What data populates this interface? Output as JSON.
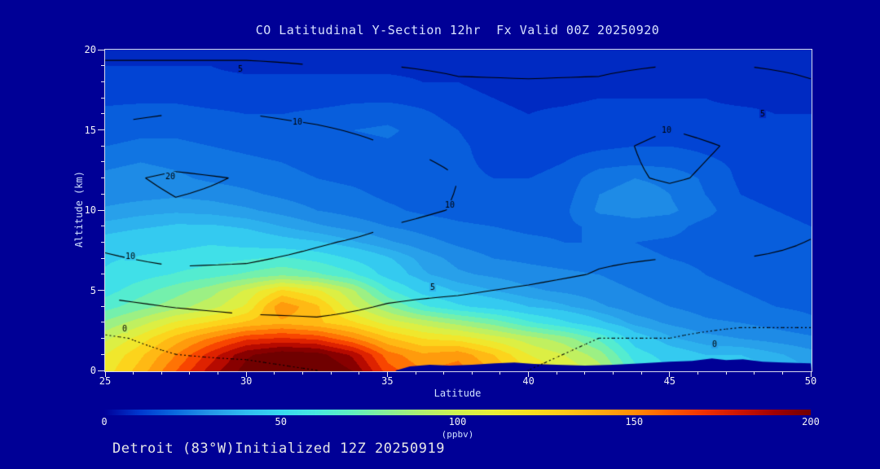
{
  "title": "CO Latitudinal Y-Section 12hr  Fx Valid 00Z 20250920",
  "footer": "Detroit (83°W)Initialized 12Z 20250919",
  "colors": {
    "background": "#000096",
    "frame": "#d9d9ec",
    "contour_line": "#000000",
    "tick": "#e6e6f2",
    "title_text": "#d8e2ff",
    "axis_text": "#f2f2f7"
  },
  "axes": {
    "x": {
      "label": "Latitude",
      "min": 25,
      "max": 50,
      "major": [
        25,
        30,
        35,
        40,
        45,
        50
      ],
      "minor_step": 1
    },
    "y": {
      "label": "Altitude (km)",
      "min": 0,
      "max": 20,
      "major": [
        0,
        5,
        10,
        15,
        20
      ],
      "minor_step": 1
    }
  },
  "colorbar": {
    "min": 0,
    "max": 200,
    "ticks": [
      0,
      50,
      100,
      150,
      200
    ],
    "label": "(ppbv)"
  },
  "chart_data": {
    "type": "heatmap",
    "title": "CO Latitudinal Y-Section 12hr  Fx Valid 00Z 20250920",
    "xlabel": "Latitude",
    "ylabel": "Altitude (km)",
    "units": "ppbv",
    "x_min": 25,
    "x_step": 1.25,
    "y_min": 0,
    "y_step": 1,
    "x": [
      25,
      26.25,
      27.5,
      28.75,
      30,
      31.25,
      32.5,
      33.75,
      35,
      36.25,
      37.5,
      38.75,
      40,
      41.25,
      42.5,
      43.75,
      45,
      46.25,
      47.5,
      48.75,
      50
    ],
    "y": [
      0,
      1,
      2,
      3,
      4,
      5,
      6,
      7,
      8,
      9,
      10,
      11,
      12,
      13,
      14,
      15,
      16,
      17,
      18,
      19,
      20
    ],
    "values": [
      [
        115,
        135,
        160,
        185,
        205,
        215,
        215,
        200,
        165,
        150,
        155,
        140,
        120,
        110,
        95,
        65,
        50,
        45,
        45,
        40,
        35
      ],
      [
        110,
        128,
        150,
        175,
        198,
        208,
        205,
        188,
        155,
        142,
        147,
        130,
        110,
        100,
        85,
        55,
        45,
        40,
        40,
        36,
        32
      ],
      [
        98,
        115,
        135,
        152,
        168,
        172,
        168,
        152,
        132,
        120,
        116,
        106,
        95,
        85,
        68,
        45,
        36,
        32,
        30,
        28,
        26
      ],
      [
        82,
        96,
        112,
        122,
        132,
        138,
        132,
        122,
        106,
        96,
        86,
        76,
        62,
        52,
        42,
        33,
        29,
        26,
        25,
        23,
        21
      ],
      [
        66,
        76,
        86,
        96,
        112,
        148,
        132,
        102,
        82,
        62,
        52,
        46,
        40,
        36,
        31,
        27,
        25,
        23,
        21,
        20,
        19
      ],
      [
        56,
        66,
        76,
        86,
        102,
        122,
        112,
        92,
        62,
        46,
        39,
        35,
        31,
        29,
        27,
        25,
        23,
        21,
        20,
        19,
        18
      ],
      [
        51,
        56,
        61,
        66,
        72,
        78,
        72,
        62,
        46,
        36,
        31,
        29,
        27,
        26,
        25,
        23,
        22,
        20,
        19,
        18,
        17
      ],
      [
        49,
        51,
        53,
        56,
        59,
        62,
        57,
        49,
        41,
        33,
        28,
        25,
        24,
        23,
        22,
        21,
        20,
        19,
        18,
        17,
        16
      ],
      [
        43,
        46,
        47,
        49,
        46,
        43,
        41,
        36,
        31,
        27,
        24,
        22,
        21,
        20,
        20,
        20,
        19,
        18,
        17,
        16,
        15
      ],
      [
        37,
        39,
        41,
        41,
        39,
        35,
        31,
        28,
        25,
        23,
        21,
        20,
        19,
        19,
        21,
        23,
        22,
        18,
        17,
        16,
        15
      ],
      [
        31,
        33,
        34,
        33,
        31,
        28,
        25,
        23,
        21,
        19,
        18,
        17,
        17,
        19,
        26,
        27,
        26,
        22,
        16,
        15,
        14
      ],
      [
        27,
        28,
        29,
        28,
        26,
        24,
        22,
        21,
        19,
        18,
        17,
        16,
        16,
        18,
        25,
        27,
        25,
        20,
        15,
        14,
        13
      ],
      [
        26,
        27,
        26,
        24,
        23,
        21,
        20,
        19,
        18,
        17,
        16,
        15,
        15,
        17,
        23,
        25,
        24,
        19,
        14,
        13,
        13
      ],
      [
        24,
        25,
        24,
        22,
        21,
        20,
        19,
        18,
        18,
        17,
        16,
        14,
        13,
        15,
        18,
        19,
        18,
        16,
        14,
        13,
        12
      ],
      [
        20,
        21,
        21,
        20,
        19,
        18,
        18,
        18,
        19,
        18,
        16,
        13,
        12,
        13,
        14,
        15,
        15,
        14,
        13,
        12,
        11
      ],
      [
        18,
        19,
        19,
        18,
        17,
        17,
        18,
        20,
        21,
        18,
        15,
        12,
        11,
        12,
        13,
        14,
        14,
        13,
        12,
        11,
        11
      ],
      [
        16,
        17,
        17,
        16,
        15,
        15,
        16,
        17,
        18,
        16,
        13,
        11,
        10,
        11,
        12,
        12,
        12,
        11,
        11,
        10,
        10
      ],
      [
        14,
        14,
        14,
        13,
        13,
        13,
        13,
        14,
        14,
        13,
        11,
        10,
        9,
        9,
        10,
        10,
        10,
        10,
        9,
        9,
        9
      ],
      [
        12,
        12,
        12,
        11,
        11,
        11,
        11,
        11,
        11,
        10,
        10,
        9,
        8,
        8,
        8,
        8,
        8,
        8,
        8,
        8,
        8
      ],
      [
        10,
        10,
        10,
        10,
        9,
        9,
        9,
        9,
        9,
        9,
        9,
        8,
        8,
        7,
        7,
        7,
        7,
        7,
        7,
        7,
        7
      ],
      [
        9,
        9,
        9,
        9,
        8,
        8,
        8,
        8,
        8,
        8,
        8,
        7,
        7,
        7,
        6,
        6,
        6,
        6,
        6,
        6,
        6
      ]
    ],
    "fill_levels": [
      0,
      5,
      10,
      15,
      20,
      25,
      30,
      35,
      40,
      50,
      60,
      70,
      80,
      90,
      100,
      110,
      120,
      130,
      140,
      150,
      160,
      170,
      180,
      190,
      200
    ],
    "colormap": [
      [
        0,
        "#000099"
      ],
      [
        10,
        "#0038d0"
      ],
      [
        20,
        "#0a6ae0"
      ],
      [
        30,
        "#2596e8"
      ],
      [
        40,
        "#30bcf0"
      ],
      [
        50,
        "#38d8f0"
      ],
      [
        60,
        "#48e8e0"
      ],
      [
        70,
        "#60f0c0"
      ],
      [
        80,
        "#88f098"
      ],
      [
        90,
        "#b0f070"
      ],
      [
        100,
        "#d0f050"
      ],
      [
        110,
        "#e8ee38"
      ],
      [
        120,
        "#f8e020"
      ],
      [
        130,
        "#ffc818"
      ],
      [
        140,
        "#ffaa10"
      ],
      [
        150,
        "#ff8c08"
      ],
      [
        160,
        "#ff5a00"
      ],
      [
        170,
        "#f03000"
      ],
      [
        180,
        "#cc1400"
      ],
      [
        190,
        "#a00000"
      ],
      [
        200,
        "#700000"
      ]
    ],
    "contour_overlay": {
      "levels": [
        0.01,
        5,
        10,
        20
      ],
      "dotted_below": 1,
      "x_min": 25,
      "x_step": 2.5,
      "y_min": 0,
      "y_step": 2,
      "values": [
        [
          -2,
          -1,
          -1,
          0,
          1,
          1,
          0,
          -1,
          -1,
          -2,
          -2
        ],
        [
          -0.5,
          1,
          2,
          3,
          3,
          2,
          1,
          0,
          0,
          -1,
          -1
        ],
        [
          4,
          5.2,
          6,
          6,
          4.8,
          4,
          3,
          2,
          2,
          2,
          2
        ],
        [
          8,
          9,
          9,
          8,
          7,
          7,
          6,
          4.8,
          4,
          4,
          4
        ],
        [
          11,
          13,
          12,
          10.4,
          9,
          8,
          7,
          6,
          6,
          6,
          4.9
        ],
        [
          16,
          19,
          18,
          14,
          11,
          9.8,
          9,
          8,
          8,
          8,
          6
        ],
        [
          18,
          21.5,
          19.5,
          16,
          12,
          10,
          9,
          9,
          10.4,
          9,
          7
        ],
        [
          12,
          14,
          13,
          12,
          10,
          9,
          8,
          9,
          11,
          9.6,
          7
        ],
        [
          9,
          10,
          10,
          9,
          8,
          7,
          6,
          7,
          9,
          8,
          6
        ],
        [
          7,
          7,
          7,
          6,
          6,
          5.2,
          5.1,
          5.2,
          6,
          6,
          5.1
        ],
        [
          4,
          4,
          4,
          4,
          4,
          4,
          4,
          4,
          4,
          4,
          4
        ]
      ],
      "labels": [
        {
          "text": "5",
          "lat": 29.8,
          "alt": 18.8
        },
        {
          "text": "10",
          "lat": 31.8,
          "alt": 15.5
        },
        {
          "text": "20",
          "lat": 27.3,
          "alt": 12.1
        },
        {
          "text": "10",
          "lat": 25.9,
          "alt": 7.1
        },
        {
          "text": "10",
          "lat": 37.2,
          "alt": 10.3
        },
        {
          "text": "5",
          "lat": 36.6,
          "alt": 5.2
        },
        {
          "text": "10",
          "lat": 44.9,
          "alt": 15.0
        },
        {
          "text": "5",
          "lat": 48.3,
          "alt": 16.0
        },
        {
          "text": "0",
          "lat": 25.7,
          "alt": 2.6
        },
        {
          "text": "0",
          "lat": 46.6,
          "alt": 1.6
        }
      ]
    },
    "terrain": [
      [
        35.3,
        0.0
      ],
      [
        35.8,
        0.25
      ],
      [
        36.5,
        0.35
      ],
      [
        37.2,
        0.3
      ],
      [
        38.0,
        0.35
      ],
      [
        38.8,
        0.45
      ],
      [
        39.5,
        0.5
      ],
      [
        40.2,
        0.4
      ],
      [
        41.0,
        0.35
      ],
      [
        42.0,
        0.3
      ],
      [
        43.0,
        0.35
      ],
      [
        44.0,
        0.45
      ],
      [
        45.0,
        0.55
      ],
      [
        45.8,
        0.6
      ],
      [
        46.5,
        0.75
      ],
      [
        47.0,
        0.65
      ],
      [
        47.6,
        0.7
      ],
      [
        48.3,
        0.55
      ],
      [
        49.0,
        0.5
      ],
      [
        50.0,
        0.45
      ]
    ]
  }
}
